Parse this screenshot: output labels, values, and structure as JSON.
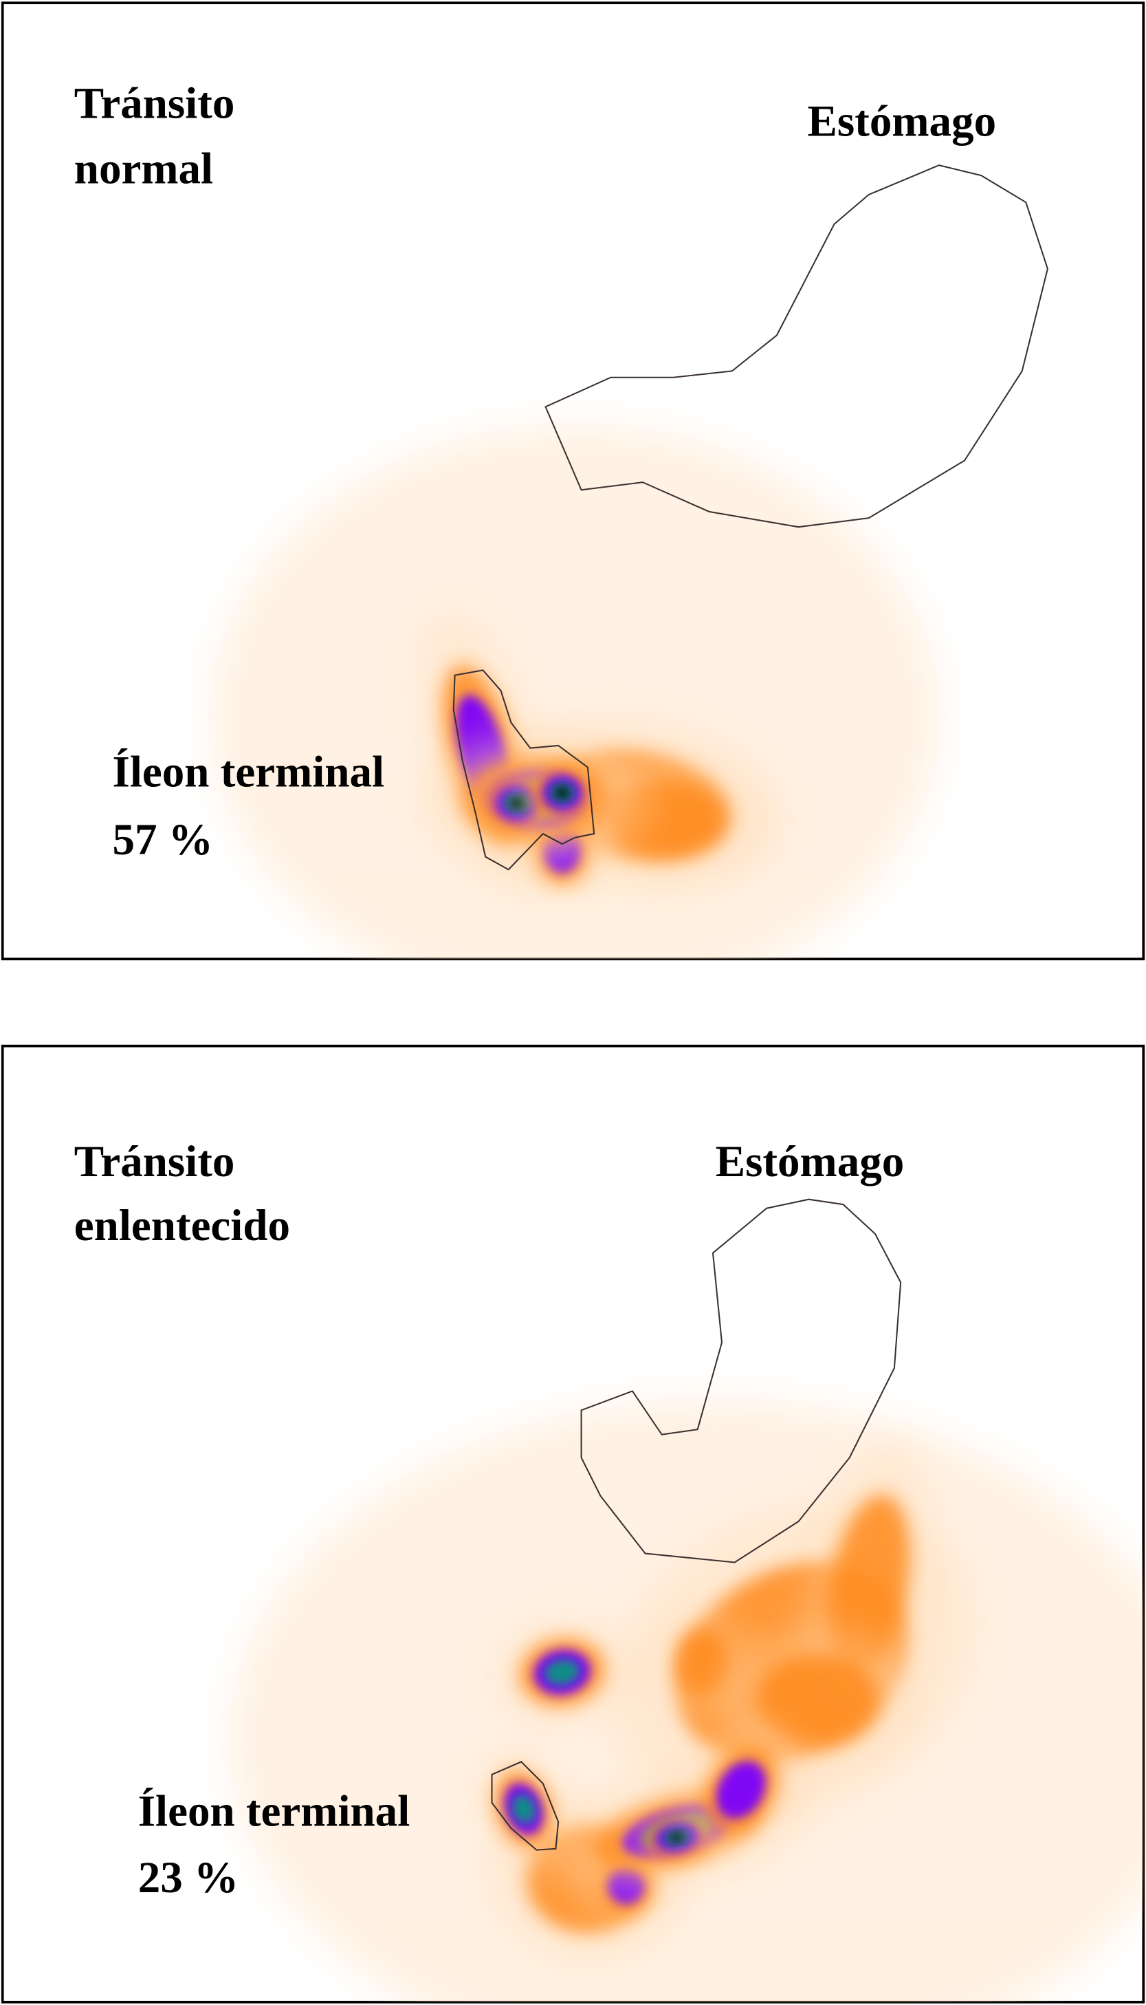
{
  "panels": [
    {
      "title_line1": "Tránsito",
      "title_line2": "normal",
      "stomach_label": "Estómago",
      "ileum_label": "Íleon terminal",
      "ileum_percent": "57 %"
    },
    {
      "title_line1": "Tránsito",
      "title_line2": "enlentecido",
      "stomach_label": "Estómago",
      "ileum_label": "Íleon terminal",
      "ileum_percent": "23 %"
    }
  ],
  "colormap": [
    "#ff8a1a",
    "#8a2be2",
    "#7a00ff",
    "#0e8f84",
    "#000000"
  ]
}
